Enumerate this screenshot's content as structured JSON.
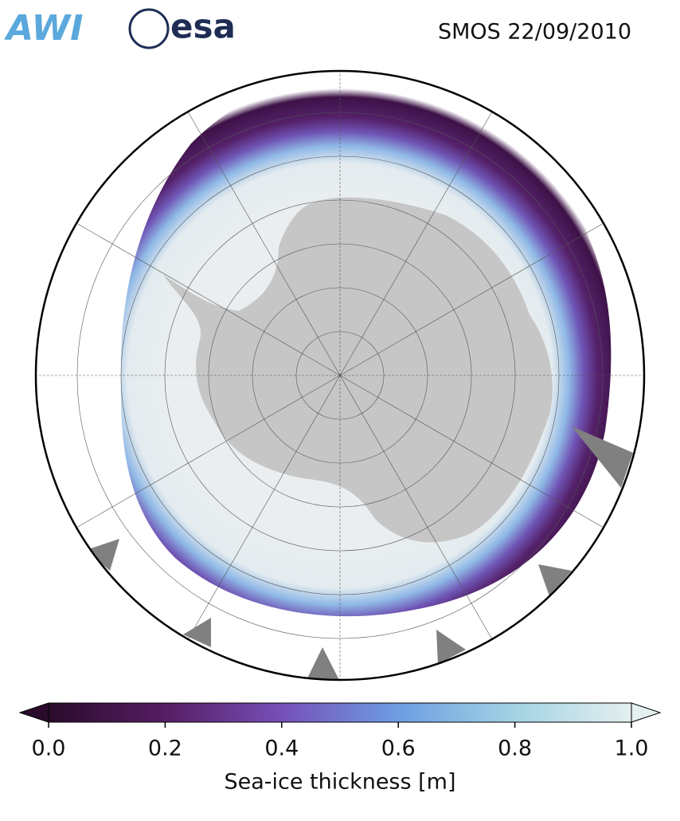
{
  "header": {
    "logos": [
      "AWI",
      "esa"
    ],
    "title": "SMOS 22/09/2010"
  },
  "colorbar": {
    "label": "Sea-ice thickness [m]",
    "lim": [
      0,
      1
    ],
    "ticks": [
      {
        "value": 0,
        "label": "0.0"
      },
      {
        "value": 0.2,
        "label": "0.2"
      },
      {
        "value": 0.4,
        "label": "0.4"
      },
      {
        "value": 0.6,
        "label": "0.6"
      },
      {
        "value": 0.8,
        "label": "0.8"
      },
      {
        "value": 1,
        "label": "1.0"
      }
    ],
    "colors": [
      "#2a0b2c",
      "#561d63",
      "#7650b8",
      "#6d9de2",
      "#a3d3e3",
      "#e4efef"
    ]
  }
}
